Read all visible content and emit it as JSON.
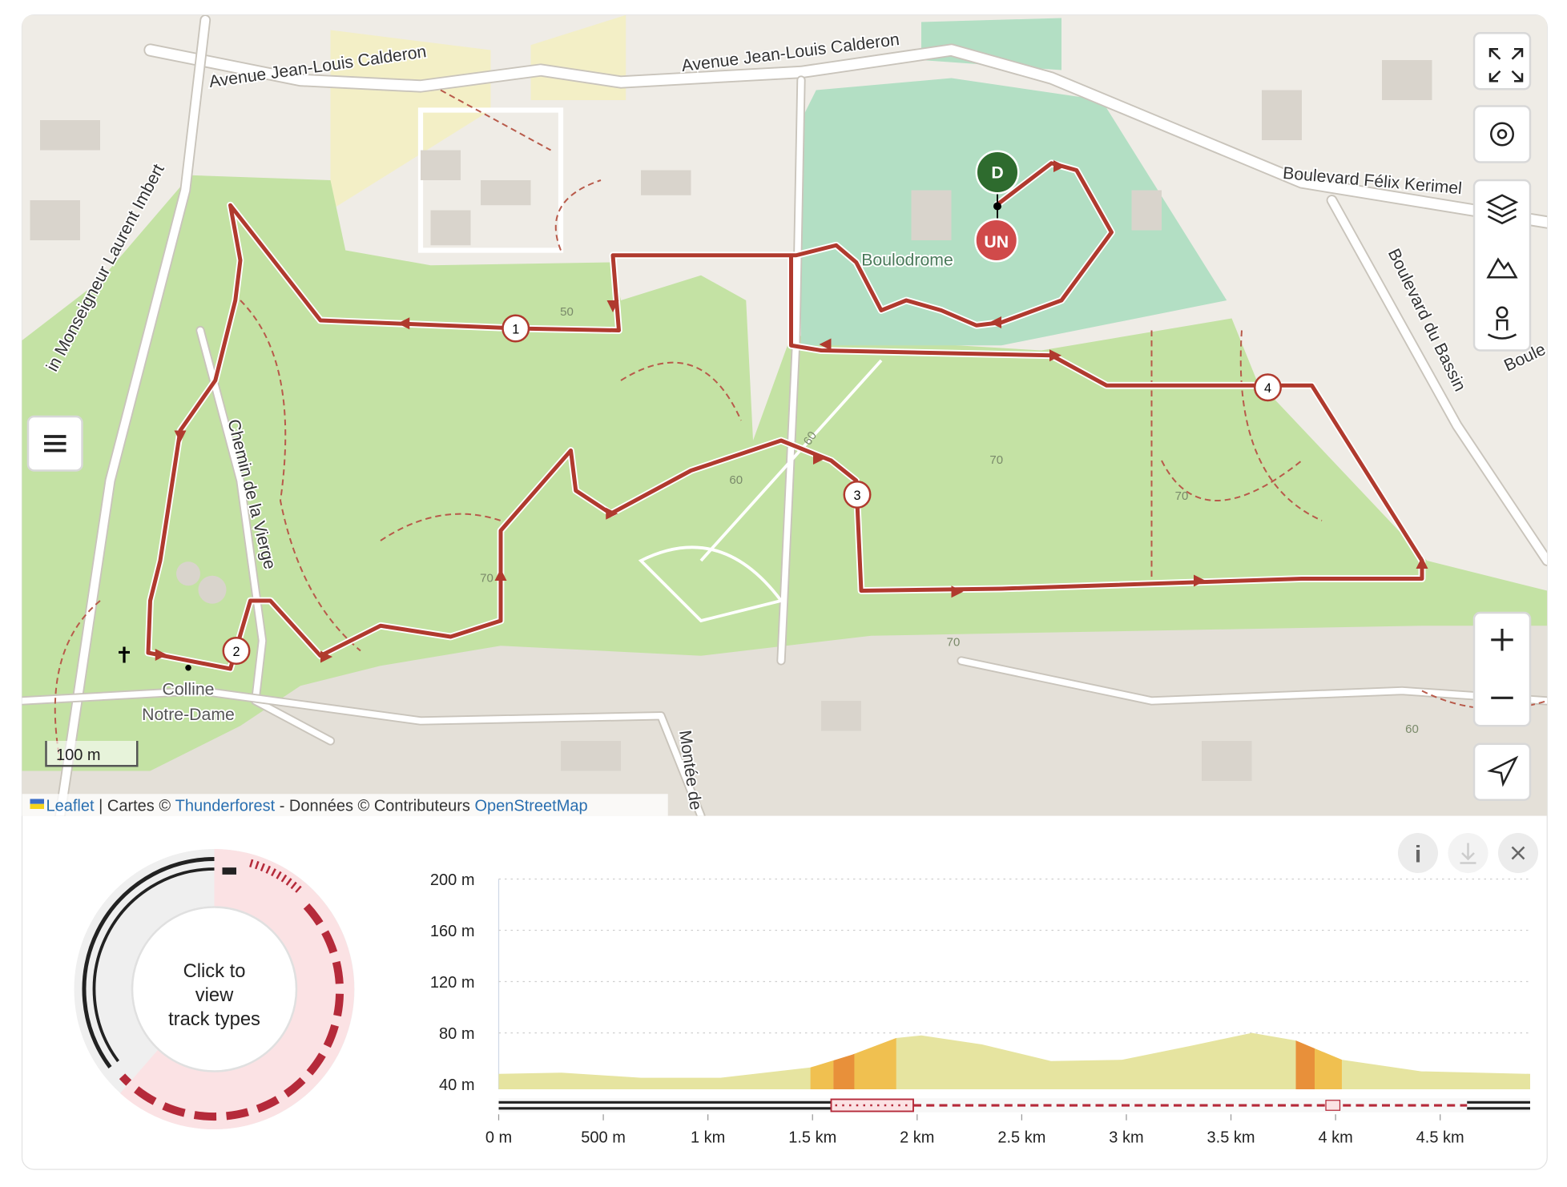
{
  "map": {
    "streets": [
      "Avenue Jean-Louis Calderon",
      "Avenue Jean-Louis Calderon",
      "Boulevard Félix Kerimel",
      "Boulevard du Bassin",
      "in Monseigneur Laurent Imbert",
      "Chemin de la Vierge",
      "Montée de",
      "Boule"
    ],
    "places": [
      "Boulodrome",
      "Colline",
      "Notre-Dame"
    ],
    "contours": [
      "50",
      "60",
      "60",
      "70",
      "70",
      "70",
      "70",
      "60"
    ],
    "start_marker": "D",
    "end_marker": "UN",
    "waypoints": [
      "1",
      "2",
      "3",
      "4"
    ],
    "scale": "100 m",
    "attribution": [
      "Leaflet",
      " | Cartes © ",
      "Thunderforest",
      " - Données © Contributeurs ",
      "OpenStreetMap"
    ]
  },
  "track_types": {
    "prompt": [
      "Click to",
      "view",
      "track types"
    ]
  },
  "chart_data": {
    "type": "area",
    "x": [
      0,
      0.3,
      0.68,
      1.06,
      1.49,
      1.69,
      1.9,
      2.02,
      2.31,
      2.64,
      2.98,
      3.31,
      3.6,
      3.81,
      4.03,
      4.41,
      4.93
    ],
    "values": [
      48,
      49,
      45,
      45,
      53,
      63,
      76,
      78,
      71,
      58,
      59,
      70,
      80,
      74,
      59,
      50,
      48
    ],
    "color": "#e6e4a0",
    "bands": [
      {
        "from": 1.49,
        "to": 1.6,
        "color": "#f0c050"
      },
      {
        "from": 1.6,
        "to": 1.7,
        "color": "#e8903a"
      },
      {
        "from": 1.7,
        "to": 1.9,
        "color": "#f0c050"
      },
      {
        "from": 3.81,
        "to": 3.9,
        "color": "#e8903a"
      },
      {
        "from": 3.9,
        "to": 4.03,
        "color": "#f0c050"
      }
    ],
    "xlim": [
      0,
      4.93
    ],
    "ylim": [
      36,
      200
    ],
    "xticks": [
      {
        "value": 0,
        "label": "0 m"
      },
      {
        "value": 0.5,
        "label": "500 m"
      },
      {
        "value": 1,
        "label": "1 km"
      },
      {
        "value": 1.5,
        "label": "1.5 km"
      },
      {
        "value": 2,
        "label": "2 km"
      },
      {
        "value": 2.5,
        "label": "2.5 km"
      },
      {
        "value": 3,
        "label": "3 km"
      },
      {
        "value": 3.5,
        "label": "3.5 km"
      },
      {
        "value": 4,
        "label": "4 km"
      },
      {
        "value": 4.5,
        "label": "4.5 km"
      }
    ],
    "yticks": [
      {
        "value": 40,
        "label": "40 m"
      },
      {
        "value": 80,
        "label": "80 m"
      },
      {
        "value": 120,
        "label": "120 m"
      },
      {
        "value": 160,
        "label": "160 m"
      },
      {
        "value": 200,
        "label": "200 m"
      }
    ],
    "grid": true
  }
}
